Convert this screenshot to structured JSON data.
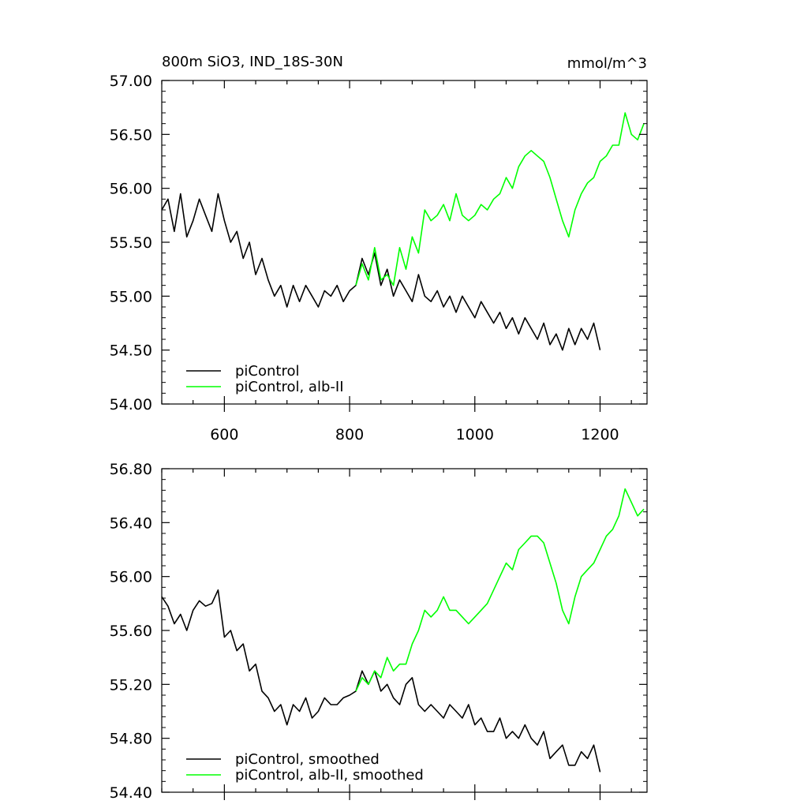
{
  "chart_data": [
    {
      "type": "line",
      "title": "800m SiO3, IND_18S-30N",
      "units": "mmol/m^3",
      "xlim": [
        500,
        1275
      ],
      "ylim": [
        54.0,
        57.0
      ],
      "x_ticks": [
        600,
        800,
        1000,
        1200
      ],
      "x_tick_labels": [
        "600",
        "800",
        "1000",
        "1200"
      ],
      "y_ticks": [
        54.0,
        54.5,
        55.0,
        55.5,
        56.0,
        56.5,
        57.0
      ],
      "y_tick_labels": [
        "54.00",
        "54.50",
        "55.00",
        "55.50",
        "56.00",
        "56.50",
        "57.00"
      ],
      "legend_position": "bottom-left",
      "series": [
        {
          "name": "piControl",
          "color": "#000000",
          "x": [
            500,
            510,
            520,
            530,
            540,
            550,
            560,
            570,
            580,
            590,
            600,
            610,
            620,
            630,
            640,
            650,
            660,
            670,
            680,
            690,
            700,
            710,
            720,
            730,
            740,
            750,
            760,
            770,
            780,
            790,
            800,
            810,
            820,
            830,
            840,
            850,
            860,
            870,
            880,
            890,
            900,
            910,
            920,
            930,
            940,
            950,
            960,
            970,
            980,
            990,
            1000,
            1010,
            1020,
            1030,
            1040,
            1050,
            1060,
            1070,
            1080,
            1090,
            1100,
            1110,
            1120,
            1130,
            1140,
            1150,
            1160,
            1170,
            1180,
            1190,
            1200
          ],
          "y": [
            55.8,
            55.9,
            55.6,
            55.95,
            55.55,
            55.7,
            55.9,
            55.75,
            55.6,
            55.95,
            55.7,
            55.5,
            55.6,
            55.35,
            55.5,
            55.2,
            55.35,
            55.15,
            55.0,
            55.1,
            54.9,
            55.1,
            54.95,
            55.1,
            55.0,
            54.9,
            55.05,
            55.0,
            55.1,
            54.95,
            55.05,
            55.1,
            55.35,
            55.2,
            55.4,
            55.1,
            55.25,
            55.0,
            55.15,
            55.05,
            54.95,
            55.2,
            55.0,
            54.95,
            55.05,
            54.9,
            55.0,
            54.85,
            55.0,
            54.9,
            54.8,
            54.95,
            54.85,
            54.75,
            54.85,
            54.7,
            54.8,
            54.65,
            54.8,
            54.7,
            54.6,
            54.75,
            54.55,
            54.65,
            54.5,
            54.7,
            54.55,
            54.7,
            54.6,
            54.75,
            54.5
          ]
        },
        {
          "name": "piControl, alb-II",
          "color": "#00ff00",
          "x": [
            810,
            820,
            830,
            840,
            850,
            860,
            870,
            880,
            890,
            900,
            910,
            920,
            930,
            940,
            950,
            960,
            970,
            980,
            990,
            1000,
            1010,
            1020,
            1030,
            1040,
            1050,
            1060,
            1070,
            1080,
            1090,
            1100,
            1110,
            1120,
            1130,
            1140,
            1150,
            1160,
            1170,
            1180,
            1190,
            1200,
            1210,
            1220,
            1230,
            1240,
            1250,
            1260,
            1270
          ],
          "y": [
            55.1,
            55.3,
            55.15,
            55.45,
            55.15,
            55.2,
            55.1,
            55.45,
            55.25,
            55.55,
            55.4,
            55.8,
            55.7,
            55.75,
            55.85,
            55.7,
            55.95,
            55.75,
            55.7,
            55.75,
            55.85,
            55.8,
            55.9,
            55.95,
            56.1,
            56.0,
            56.2,
            56.3,
            56.35,
            56.3,
            56.25,
            56.1,
            55.9,
            55.7,
            55.55,
            55.8,
            55.95,
            56.05,
            56.1,
            56.25,
            56.3,
            56.4,
            56.4,
            56.7,
            56.5,
            56.45,
            56.6
          ]
        }
      ]
    },
    {
      "type": "line",
      "title": "",
      "xlim": [
        500,
        1275
      ],
      "ylim": [
        54.4,
        56.8
      ],
      "x_ticks": [
        600,
        800,
        1000,
        1200
      ],
      "x_tick_labels": [],
      "y_ticks": [
        54.4,
        54.8,
        55.2,
        55.6,
        56.0,
        56.4,
        56.8
      ],
      "y_tick_labels": [
        "54.40",
        "54.80",
        "55.20",
        "55.60",
        "56.00",
        "56.40",
        "56.80"
      ],
      "legend_position": "bottom-left",
      "series": [
        {
          "name": "piControl, smoothed",
          "color": "#000000",
          "x": [
            500,
            510,
            520,
            530,
            540,
            550,
            560,
            570,
            580,
            590,
            600,
            610,
            620,
            630,
            640,
            650,
            660,
            670,
            680,
            690,
            700,
            710,
            720,
            730,
            740,
            750,
            760,
            770,
            780,
            790,
            800,
            810,
            820,
            830,
            840,
            850,
            860,
            870,
            880,
            890,
            900,
            910,
            920,
            930,
            940,
            950,
            960,
            970,
            980,
            990,
            1000,
            1010,
            1020,
            1030,
            1040,
            1050,
            1060,
            1070,
            1080,
            1090,
            1100,
            1110,
            1120,
            1130,
            1140,
            1150,
            1160,
            1170,
            1180,
            1190,
            1200
          ],
          "y": [
            55.85,
            55.78,
            55.65,
            55.72,
            55.6,
            55.75,
            55.82,
            55.78,
            55.8,
            55.9,
            55.55,
            55.6,
            55.45,
            55.5,
            55.3,
            55.35,
            55.15,
            55.1,
            55.0,
            55.05,
            54.9,
            55.05,
            55.0,
            55.1,
            54.95,
            55.0,
            55.1,
            55.05,
            55.05,
            55.1,
            55.12,
            55.15,
            55.3,
            55.2,
            55.3,
            55.15,
            55.2,
            55.1,
            55.05,
            55.2,
            55.25,
            55.05,
            55.0,
            55.05,
            55.0,
            54.95,
            55.05,
            55.0,
            54.95,
            55.05,
            54.9,
            54.95,
            54.85,
            54.85,
            54.95,
            54.8,
            54.85,
            54.8,
            54.9,
            54.8,
            54.75,
            54.85,
            54.65,
            54.7,
            54.75,
            54.6,
            54.6,
            54.7,
            54.65,
            54.75,
            54.55
          ]
        },
        {
          "name": "piControl, alb-II, smoothed",
          "color": "#00ff00",
          "x": [
            810,
            820,
            830,
            840,
            850,
            860,
            870,
            880,
            890,
            900,
            910,
            920,
            930,
            940,
            950,
            960,
            970,
            980,
            990,
            1000,
            1010,
            1020,
            1030,
            1040,
            1050,
            1060,
            1070,
            1080,
            1090,
            1100,
            1110,
            1120,
            1130,
            1140,
            1150,
            1160,
            1170,
            1180,
            1190,
            1200,
            1210,
            1220,
            1230,
            1240,
            1250,
            1260,
            1270
          ],
          "y": [
            55.15,
            55.25,
            55.2,
            55.3,
            55.25,
            55.4,
            55.3,
            55.35,
            55.35,
            55.5,
            55.6,
            55.75,
            55.7,
            55.75,
            55.85,
            55.75,
            55.75,
            55.7,
            55.65,
            55.7,
            55.75,
            55.8,
            55.9,
            56.0,
            56.1,
            56.05,
            56.2,
            56.25,
            56.3,
            56.3,
            56.25,
            56.1,
            55.95,
            55.75,
            55.65,
            55.85,
            56.0,
            56.05,
            56.1,
            56.2,
            56.3,
            56.35,
            56.45,
            56.65,
            56.55,
            56.45,
            56.5
          ]
        }
      ]
    }
  ]
}
